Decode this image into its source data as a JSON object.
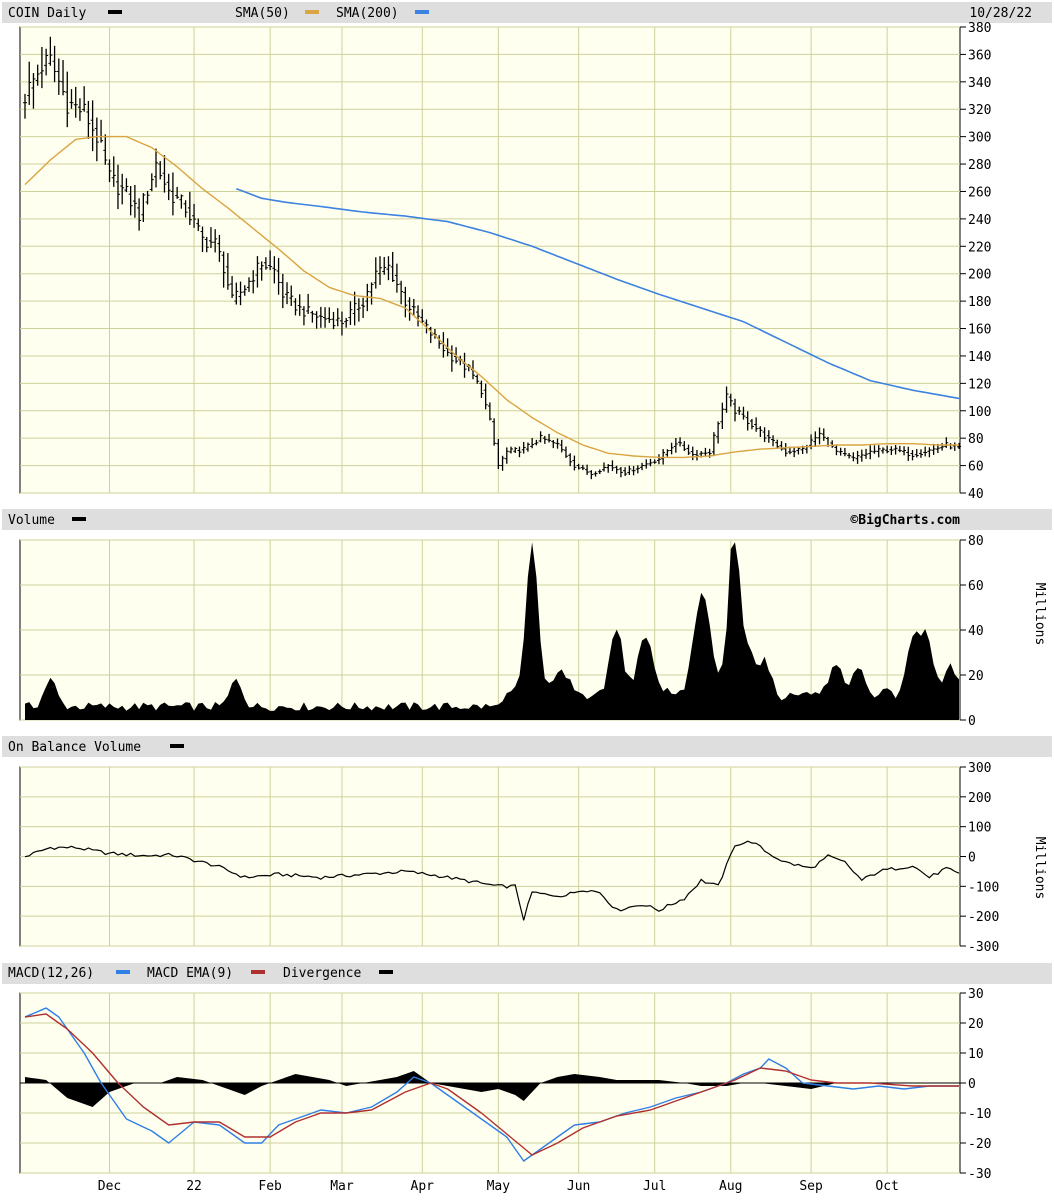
{
  "chart_data": [
    {
      "type": "ohlc",
      "title": "COIN Daily",
      "date": "10/28/22",
      "legend": [
        {
          "label": "COIN Daily",
          "color": "#000000"
        },
        {
          "label": "SMA(50)",
          "color": "#d9a441"
        },
        {
          "label": "SMA(200)",
          "color": "#3c82e0"
        }
      ],
      "ylim": [
        40,
        380
      ],
      "yticks": [
        40,
        60,
        80,
        100,
        120,
        140,
        160,
        180,
        200,
        220,
        240,
        260,
        280,
        300,
        320,
        340,
        360,
        380
      ],
      "close_anchors": [
        [
          0,
          330
        ],
        [
          4,
          352
        ],
        [
          6,
          355
        ],
        [
          10,
          325
        ],
        [
          14,
          318
        ],
        [
          17,
          300
        ],
        [
          20,
          270
        ],
        [
          24,
          258
        ],
        [
          27,
          243
        ],
        [
          31,
          280
        ],
        [
          34,
          260
        ],
        [
          38,
          248
        ],
        [
          42,
          225
        ],
        [
          45,
          222
        ],
        [
          47,
          205
        ],
        [
          49,
          180
        ],
        [
          52,
          190
        ],
        [
          56,
          208
        ],
        [
          59,
          202
        ],
        [
          61,
          185
        ],
        [
          65,
          174
        ],
        [
          70,
          168
        ],
        [
          75,
          165
        ],
        [
          80,
          180
        ],
        [
          83,
          200
        ],
        [
          86,
          205
        ],
        [
          90,
          180
        ],
        [
          95,
          160
        ],
        [
          100,
          142
        ],
        [
          105,
          130
        ],
        [
          108,
          115
        ],
        [
          110,
          92
        ],
        [
          112,
          60
        ],
        [
          114,
          70
        ],
        [
          118,
          72
        ],
        [
          122,
          80
        ],
        [
          126,
          75
        ],
        [
          130,
          60
        ],
        [
          134,
          54
        ],
        [
          138,
          60
        ],
        [
          142,
          55
        ],
        [
          146,
          60
        ],
        [
          150,
          65
        ],
        [
          154,
          77
        ],
        [
          158,
          68
        ],
        [
          162,
          70
        ],
        [
          164,
          92
        ],
        [
          166,
          110
        ],
        [
          168,
          100
        ],
        [
          172,
          90
        ],
        [
          176,
          79
        ],
        [
          180,
          70
        ],
        [
          184,
          72
        ],
        [
          188,
          83
        ],
        [
          192,
          70
        ],
        [
          196,
          65
        ],
        [
          200,
          70
        ],
        [
          205,
          72
        ],
        [
          210,
          68
        ],
        [
          215,
          72
        ],
        [
          218,
          75
        ],
        [
          221,
          73
        ]
      ],
      "sma50_anchors": [
        [
          0,
          265
        ],
        [
          6,
          283
        ],
        [
          12,
          298
        ],
        [
          17,
          300
        ],
        [
          24,
          300
        ],
        [
          30,
          292
        ],
        [
          36,
          278
        ],
        [
          42,
          262
        ],
        [
          48,
          248
        ],
        [
          54,
          233
        ],
        [
          60,
          218
        ],
        [
          66,
          202
        ],
        [
          72,
          190
        ],
        [
          78,
          184
        ],
        [
          84,
          182
        ],
        [
          90,
          175
        ],
        [
          96,
          158
        ],
        [
          102,
          140
        ],
        [
          108,
          125
        ],
        [
          114,
          108
        ],
        [
          120,
          95
        ],
        [
          126,
          84
        ],
        [
          132,
          75
        ],
        [
          138,
          69
        ],
        [
          144,
          67
        ],
        [
          150,
          66
        ],
        [
          156,
          66
        ],
        [
          162,
          67
        ],
        [
          168,
          70
        ],
        [
          174,
          72
        ],
        [
          180,
          73
        ],
        [
          186,
          74
        ],
        [
          192,
          75
        ],
        [
          198,
          75
        ],
        [
          204,
          76
        ],
        [
          210,
          76
        ],
        [
          216,
          75
        ],
        [
          221,
          75
        ]
      ],
      "sma200_anchors": [
        [
          50,
          262
        ],
        [
          56,
          255
        ],
        [
          62,
          252
        ],
        [
          70,
          249
        ],
        [
          80,
          245
        ],
        [
          90,
          242
        ],
        [
          100,
          238
        ],
        [
          110,
          230
        ],
        [
          120,
          220
        ],
        [
          130,
          208
        ],
        [
          140,
          196
        ],
        [
          150,
          185
        ],
        [
          160,
          175
        ],
        [
          170,
          165
        ],
        [
          180,
          150
        ],
        [
          190,
          135
        ],
        [
          200,
          122
        ],
        [
          210,
          115
        ],
        [
          221,
          109
        ]
      ]
    },
    {
      "type": "area",
      "title": "Volume",
      "unit_label": "Millions",
      "watermark": "©BigCharts.com",
      "ylim": [
        0,
        80
      ],
      "yticks": [
        0,
        20,
        40,
        60,
        80
      ],
      "base": 4,
      "peaks": [
        [
          6,
          12,
          2
        ],
        [
          50,
          12,
          2
        ],
        [
          120,
          66,
          2
        ],
        [
          127,
          12,
          2
        ],
        [
          140,
          30,
          2
        ],
        [
          147,
          24,
          2.5
        ],
        [
          159,
          24,
          2
        ],
        [
          161,
          33,
          2
        ],
        [
          167,
          25,
          2
        ],
        [
          168,
          55,
          1.5
        ],
        [
          171,
          20,
          2.5
        ],
        [
          175,
          13,
          2
        ],
        [
          192,
          12,
          2
        ],
        [
          197,
          12,
          2
        ],
        [
          210,
          17,
          2
        ],
        [
          212,
          16,
          2
        ],
        [
          214,
          15,
          2
        ],
        [
          219,
          14,
          2
        ]
      ]
    },
    {
      "type": "line",
      "title": "On Balance Volume",
      "unit_label": "Millions",
      "ylim": [
        -300,
        300
      ],
      "yticks": [
        -300,
        -200,
        -100,
        0,
        100,
        200,
        300
      ],
      "obv_anchors": [
        [
          0,
          0
        ],
        [
          6,
          30
        ],
        [
          12,
          30
        ],
        [
          20,
          10
        ],
        [
          28,
          3
        ],
        [
          35,
          5
        ],
        [
          45,
          -30
        ],
        [
          52,
          -70
        ],
        [
          60,
          -60
        ],
        [
          70,
          -70
        ],
        [
          80,
          -60
        ],
        [
          90,
          -50
        ],
        [
          98,
          -65
        ],
        [
          106,
          -85
        ],
        [
          112,
          -100
        ],
        [
          116,
          -100
        ],
        [
          118,
          -210
        ],
        [
          120,
          -120
        ],
        [
          124,
          -130
        ],
        [
          128,
          -130
        ],
        [
          132,
          -110
        ],
        [
          136,
          -120
        ],
        [
          140,
          -180
        ],
        [
          146,
          -160
        ],
        [
          150,
          -180
        ],
        [
          156,
          -140
        ],
        [
          160,
          -80
        ],
        [
          164,
          -100
        ],
        [
          168,
          40
        ],
        [
          172,
          50
        ],
        [
          176,
          10
        ],
        [
          180,
          -20
        ],
        [
          186,
          -40
        ],
        [
          190,
          0
        ],
        [
          194,
          -20
        ],
        [
          198,
          -80
        ],
        [
          202,
          -50
        ],
        [
          206,
          -40
        ],
        [
          210,
          -30
        ],
        [
          214,
          -70
        ],
        [
          218,
          -40
        ],
        [
          221,
          -60
        ]
      ]
    },
    {
      "type": "line",
      "title": "MACD(12,26)",
      "legend": [
        {
          "label": "MACD(12,26)",
          "color": "#2f7fe6"
        },
        {
          "label": "MACD EMA(9)",
          "color": "#b03030"
        },
        {
          "label": "Divergence",
          "color": "#000000"
        }
      ],
      "ylim": [
        -30,
        30
      ],
      "yticks": [
        -30,
        -20,
        -10,
        0,
        10,
        20,
        30
      ],
      "macd_anchors": [
        [
          0,
          22
        ],
        [
          5,
          25
        ],
        [
          8,
          22
        ],
        [
          14,
          10
        ],
        [
          18,
          0
        ],
        [
          24,
          -12
        ],
        [
          30,
          -16
        ],
        [
          34,
          -20
        ],
        [
          40,
          -13
        ],
        [
          46,
          -14
        ],
        [
          52,
          -20
        ],
        [
          56,
          -20
        ],
        [
          60,
          -14
        ],
        [
          66,
          -11
        ],
        [
          70,
          -9
        ],
        [
          76,
          -10
        ],
        [
          82,
          -8
        ],
        [
          88,
          -3
        ],
        [
          92,
          2
        ],
        [
          96,
          0
        ],
        [
          100,
          -4
        ],
        [
          106,
          -10
        ],
        [
          110,
          -14
        ],
        [
          114,
          -18
        ],
        [
          118,
          -26
        ],
        [
          124,
          -20
        ],
        [
          130,
          -14
        ],
        [
          136,
          -13
        ],
        [
          142,
          -10
        ],
        [
          148,
          -8
        ],
        [
          154,
          -5
        ],
        [
          160,
          -3
        ],
        [
          166,
          0
        ],
        [
          170,
          3
        ],
        [
          174,
          5
        ],
        [
          176,
          8
        ],
        [
          180,
          5
        ],
        [
          184,
          0
        ],
        [
          190,
          -1
        ],
        [
          196,
          -2
        ],
        [
          202,
          -1
        ],
        [
          208,
          -2
        ],
        [
          214,
          -1
        ],
        [
          221,
          -1
        ]
      ],
      "signal_anchors": [
        [
          0,
          22
        ],
        [
          5,
          23
        ],
        [
          10,
          18
        ],
        [
          16,
          10
        ],
        [
          22,
          0
        ],
        [
          28,
          -8
        ],
        [
          34,
          -14
        ],
        [
          40,
          -13
        ],
        [
          46,
          -13
        ],
        [
          52,
          -18
        ],
        [
          58,
          -18
        ],
        [
          64,
          -13
        ],
        [
          70,
          -10
        ],
        [
          76,
          -10
        ],
        [
          82,
          -9
        ],
        [
          90,
          -3
        ],
        [
          96,
          0
        ],
        [
          100,
          -2
        ],
        [
          108,
          -10
        ],
        [
          114,
          -17
        ],
        [
          120,
          -24
        ],
        [
          126,
          -20
        ],
        [
          132,
          -15
        ],
        [
          140,
          -11
        ],
        [
          148,
          -9
        ],
        [
          154,
          -6
        ],
        [
          160,
          -3
        ],
        [
          168,
          1
        ],
        [
          174,
          5
        ],
        [
          180,
          4
        ],
        [
          186,
          1
        ],
        [
          192,
          0
        ],
        [
          200,
          0
        ],
        [
          210,
          -1
        ],
        [
          221,
          -1
        ]
      ],
      "divergence_anchors": [
        [
          0,
          2
        ],
        [
          5,
          1
        ],
        [
          10,
          -5
        ],
        [
          16,
          -8
        ],
        [
          20,
          -3
        ],
        [
          26,
          0
        ],
        [
          32,
          0
        ],
        [
          36,
          2
        ],
        [
          42,
          1
        ],
        [
          48,
          -2
        ],
        [
          52,
          -4
        ],
        [
          56,
          -1
        ],
        [
          60,
          1
        ],
        [
          64,
          3
        ],
        [
          68,
          2
        ],
        [
          72,
          1
        ],
        [
          76,
          -1
        ],
        [
          84,
          1
        ],
        [
          88,
          2
        ],
        [
          92,
          4
        ],
        [
          96,
          0
        ],
        [
          100,
          -1
        ],
        [
          104,
          -2
        ],
        [
          108,
          -3
        ],
        [
          112,
          -2
        ],
        [
          116,
          -4
        ],
        [
          118,
          -6
        ],
        [
          122,
          0
        ],
        [
          126,
          2
        ],
        [
          130,
          3
        ],
        [
          136,
          2
        ],
        [
          140,
          1
        ],
        [
          146,
          1
        ],
        [
          150,
          1
        ],
        [
          156,
          0
        ],
        [
          160,
          -1
        ],
        [
          166,
          -1
        ],
        [
          170,
          0
        ],
        [
          174,
          0
        ],
        [
          180,
          -1
        ],
        [
          186,
          -2
        ],
        [
          192,
          0
        ],
        [
          200,
          0
        ],
        [
          210,
          0
        ],
        [
          221,
          0
        ]
      ]
    }
  ],
  "x_axis": {
    "months": [
      {
        "label": "Dec",
        "day": 20
      },
      {
        "label": "22",
        "day": 40
      },
      {
        "label": "Feb",
        "day": 58
      },
      {
        "label": "Mar",
        "day": 75
      },
      {
        "label": "Apr",
        "day": 94
      },
      {
        "label": "May",
        "day": 112
      },
      {
        "label": "Jun",
        "day": 131
      },
      {
        "label": "Jul",
        "day": 149
      },
      {
        "label": "Aug",
        "day": 167
      },
      {
        "label": "Sep",
        "day": 186
      },
      {
        "label": "Oct",
        "day": 204
      }
    ]
  },
  "colors": {
    "grid": "#cfd19a",
    "panel_bg": "#fffff0",
    "header_bg": "#dedede"
  }
}
